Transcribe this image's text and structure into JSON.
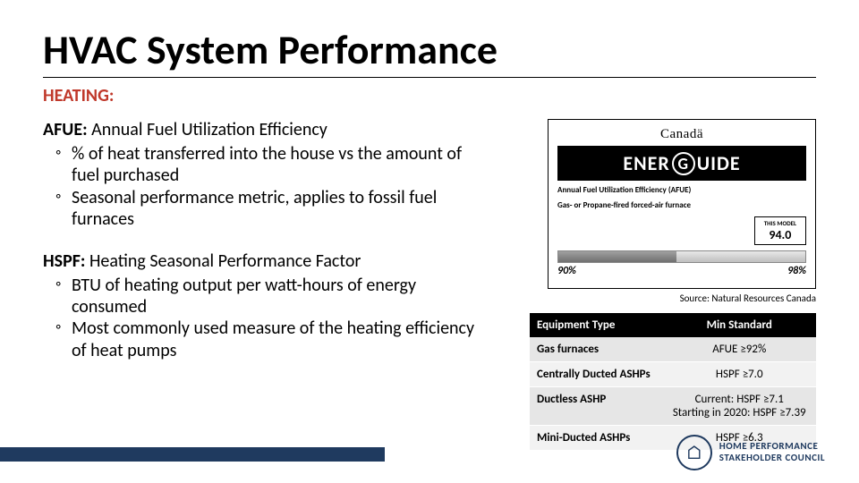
{
  "title": "HVAC System Performance",
  "section": "HEATING:",
  "afue": {
    "term": "AFUE:",
    "definition": "Annual Fuel Utilization Efficiency",
    "bullets": [
      "% of heat transferred into the house vs the amount of fuel purchased",
      "Seasonal performance metric, applies to fossil fuel furnaces"
    ]
  },
  "hspf": {
    "term": "HSPF:",
    "definition": "Heating Seasonal Performance Factor",
    "bullets": [
      "BTU of heating output per watt-hours of energy consumed",
      "Most commonly used measure of the heating efficiency of heat pumps"
    ]
  },
  "energuide": {
    "canada": "Canadä",
    "logo_left": "ENER",
    "logo_g": "G",
    "logo_right": "UIDE",
    "sub1": "Annual Fuel Utilization Efficiency (AFUE)",
    "sub2": "Gas- or Propane-fired forced-air furnace",
    "model_label": "THIS MODEL",
    "model_value": "94.0",
    "scale_low": "90%",
    "scale_high": "98%"
  },
  "source": "Source: Natural Resources Canada",
  "table": {
    "headers": [
      "Equipment Type",
      "Min Standard"
    ],
    "rows": [
      [
        "Gas furnaces",
        "AFUE ≥92%"
      ],
      [
        "Centrally Ducted ASHPs",
        "HSPF ≥7.0"
      ],
      [
        "Ductless ASHP",
        "Current: HSPF ≥7.1\nStarting in 2020: HSPF ≥7.39"
      ],
      [
        "Mini-Ducted ASHPs",
        "HSPF ≥6.3"
      ]
    ]
  },
  "footer_logo": {
    "line1": "HOME PERFORMANCE",
    "line2": "STAKEHOLDER COUNCIL"
  },
  "colors": {
    "heading_red": "#c0392b",
    "footer_blue": "#1f3a5f",
    "table_header_bg": "#000000"
  }
}
